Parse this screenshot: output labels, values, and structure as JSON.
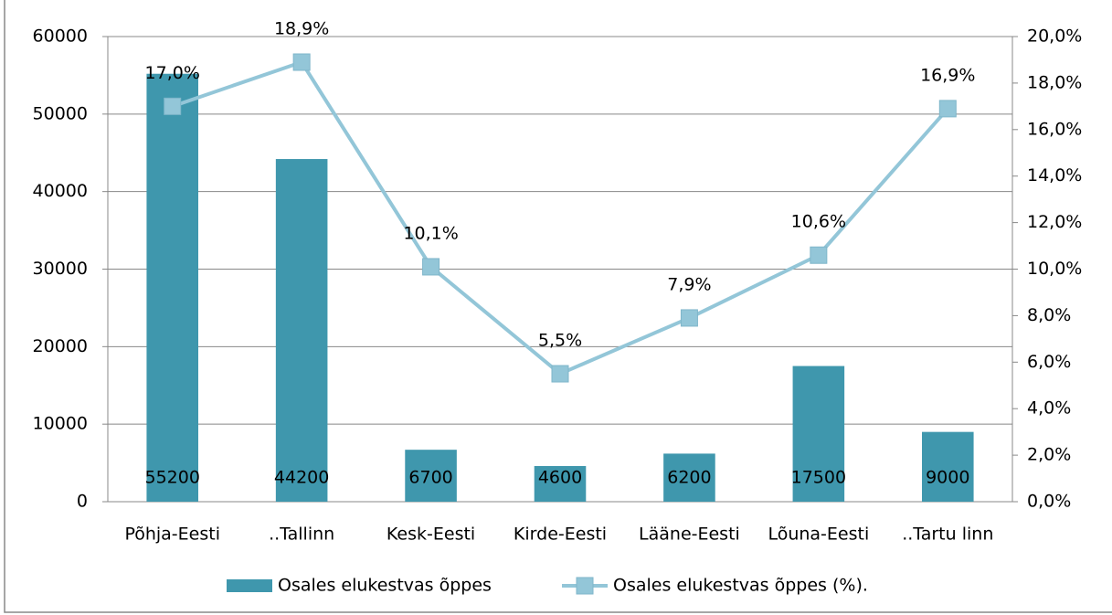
{
  "chart_data": {
    "type": "bar",
    "categories": [
      "Põhja-Eesti",
      "..Tallinn",
      "Kesk-Eesti",
      "Kirde-Eesti",
      "Lääne-Eesti",
      "Lõuna-Eesti",
      "..Tartu linn"
    ],
    "series": [
      {
        "name": "Osales elukestvas õppes",
        "type": "bar",
        "color": "#3f97ad",
        "values": [
          55200,
          44200,
          6700,
          4600,
          6200,
          17500,
          9000
        ]
      },
      {
        "name": "Osales elukestvas õppes (%).",
        "type": "line",
        "axis": "y2",
        "color": "#93c6d8",
        "values": [
          17.0,
          18.9,
          10.1,
          5.5,
          7.9,
          10.6,
          16.9
        ],
        "value_labels": [
          "17,0%",
          "18,9%",
          "10,1%",
          "5,5%",
          "7,9%",
          "10,6%",
          "16,9%"
        ]
      }
    ],
    "ylim": [
      0,
      60000
    ],
    "yticks": [
      0,
      10000,
      20000,
      30000,
      40000,
      50000,
      60000
    ],
    "y2lim": [
      0,
      20
    ],
    "y2ticks": [
      {
        "value": 0,
        "label": "0,0%"
      },
      {
        "value": 2,
        "label": "2,0%"
      },
      {
        "value": 4,
        "label": "4,0%"
      },
      {
        "value": 6,
        "label": "6,0%"
      },
      {
        "value": 8,
        "label": "8,0%"
      },
      {
        "value": 10,
        "label": "10,0%"
      },
      {
        "value": 12,
        "label": "12,0%"
      },
      {
        "value": 14,
        "label": "14,0%"
      },
      {
        "value": 16,
        "label": "16,0%"
      },
      {
        "value": 18,
        "label": "18,0%"
      },
      {
        "value": 20,
        "label": "20,0%"
      }
    ],
    "grid": true,
    "legend": "bottom"
  }
}
